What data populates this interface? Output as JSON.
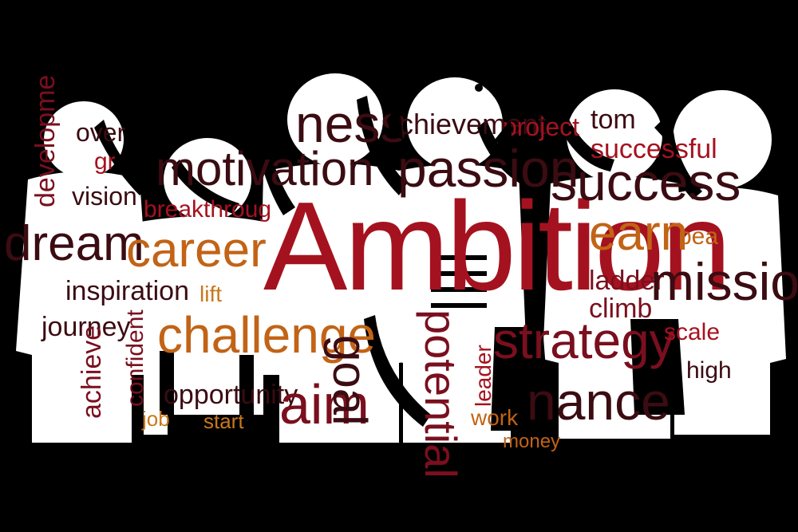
{
  "colors": {
    "background": "#000000",
    "figure": "#ffffff",
    "dark_red": "#7a0f1e",
    "red": "#a5121f",
    "maroon": "#3b0c12",
    "orange": "#c26316",
    "gold": "#c9781c"
  },
  "words": {
    "ambition": "Ambition",
    "success": "success",
    "mission": "mission",
    "strategy": "strategy",
    "challenge": "challenge",
    "career": "career",
    "dream": "dream",
    "motivation": "motivation",
    "passion": "passion",
    "business": "ness",
    "achievement": "chievement",
    "project": "project",
    "tomorrow": "tom",
    "successful": "successful",
    "earn": "earn",
    "peak": "pea",
    "ladder": "ladder",
    "climb": "climb",
    "scale": "scale",
    "high": "high",
    "aim": "aim",
    "goal": "goal",
    "potential": "potential",
    "leader": "leader",
    "work": "work",
    "finance": "nance",
    "inspiration": "inspiration",
    "lift": "lift",
    "journey": "journey",
    "confident": "confident",
    "achieve": "achieve",
    "opportunity": "opportunity",
    "job": "job",
    "start": "start",
    "vision": "vision",
    "over": "over",
    "growth": "gr",
    "development": "developme",
    "breakthrough": "breakthroug",
    "money": "money"
  }
}
